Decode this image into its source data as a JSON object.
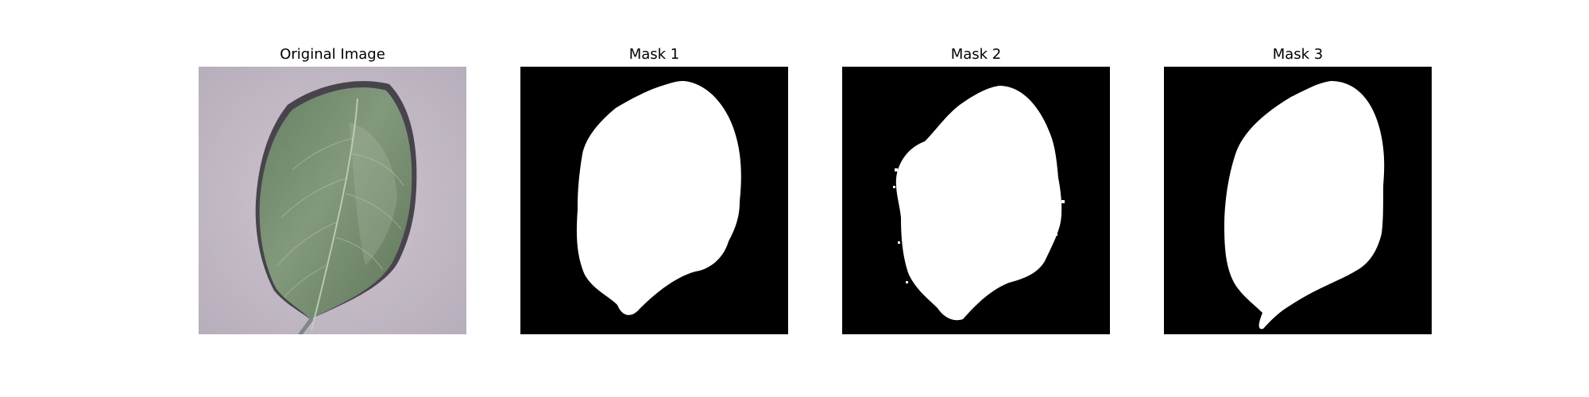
{
  "figure": {
    "panels": [
      {
        "title": "Original Image",
        "content": "leaf photo"
      },
      {
        "title": "Mask 1",
        "content": "binary mask"
      },
      {
        "title": "Mask 2",
        "content": "binary mask"
      },
      {
        "title": "Mask 3",
        "content": "binary mask"
      }
    ],
    "colors": {
      "mask_background": "#000000",
      "mask_foreground": "#ffffff",
      "leaf": "#6f8a67",
      "photo_background": "#b9afbc"
    }
  }
}
